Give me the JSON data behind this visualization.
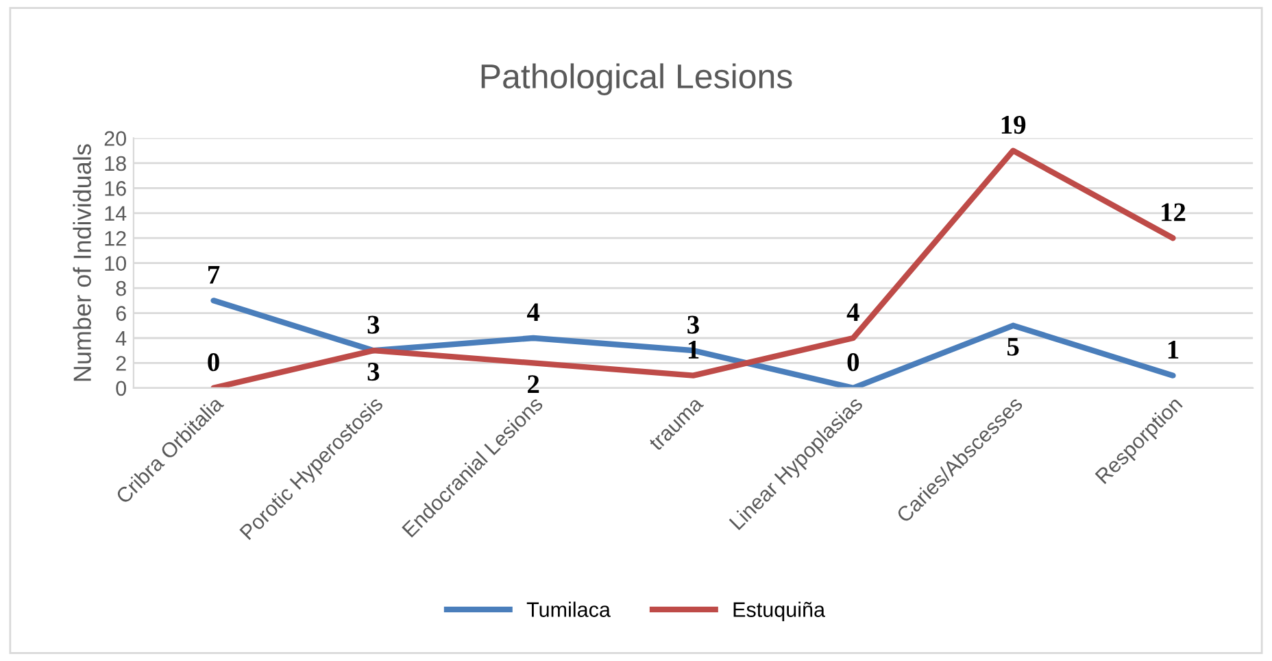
{
  "chart_data": {
    "type": "line",
    "title": "Pathological Lesions",
    "ylabel": "Number of Individuals",
    "categories": [
      "Cribra Orbitalia",
      "Porotic Hyperostosis",
      "Endocranial Lesions",
      "trauma",
      "Linear Hypoplasias",
      "Caries/Abscesses",
      "Resporption"
    ],
    "series": [
      {
        "name": "Tumilaca",
        "color": "#4a7ebb",
        "values": [
          7,
          3,
          4,
          3,
          0,
          5,
          1
        ]
      },
      {
        "name": "Estuquiña",
        "color": "#be4b48",
        "values": [
          0,
          3,
          2,
          1,
          4,
          19,
          12
        ]
      }
    ],
    "ylim": [
      0,
      20
    ],
    "yticks": [
      0,
      2,
      4,
      6,
      8,
      10,
      12,
      14,
      16,
      18,
      20
    ],
    "grid": "y",
    "legend": "bottom",
    "data_labels": true,
    "marker": "none",
    "line_style": "solid"
  }
}
